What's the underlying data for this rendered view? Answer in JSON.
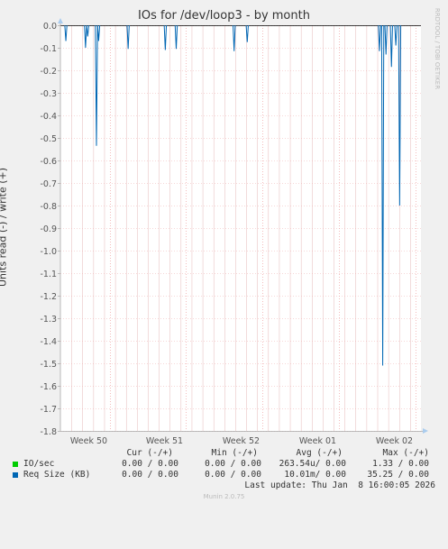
{
  "title": "IOs for /dev/loop3 - by month",
  "side_text": "RRDTOOL / TOBI OETIKER",
  "footer": "Munin 2.0.75",
  "last_update": "Last update: Thu Jan  8 16:00:05 2026",
  "legend": {
    "headers": [
      "Cur (-/+)",
      "Min (-/+)",
      "Avg (-/+)",
      "Max (-/+)"
    ],
    "rows": [
      {
        "name": "IO/sec",
        "color": "#00cc00",
        "values": [
          "0.00 / 0.00",
          "0.00 / 0.00",
          "263.54u/ 0.00",
          "1.33 / 0.00"
        ]
      },
      {
        "name": "Req Size (KB)",
        "color": "#0066b3",
        "values": [
          "0.00 / 0.00",
          "0.00 / 0.00",
          "10.01m/ 0.00",
          "35.25 / 0.00"
        ]
      }
    ]
  },
  "chart_data": {
    "type": "line",
    "title": "IOs for /dev/loop3 - by month",
    "ylabel": "Units read (-) / write (+)",
    "xlabel": "",
    "ylim": [
      -1.8,
      0.0
    ],
    "yticks": [
      0.0,
      -0.1,
      -0.2,
      -0.3,
      -0.4,
      -0.5,
      -0.6,
      -0.7,
      -0.8,
      -0.9,
      -1.0,
      -1.1,
      -1.2,
      -1.3,
      -1.4,
      -1.5,
      -1.6,
      -1.7,
      -1.8
    ],
    "ytick_labels": [
      "0.0",
      "-0.1",
      "-0.2",
      "-0.3",
      "-0.4",
      "-0.5",
      "-0.6",
      "-0.7",
      "-0.8",
      "-0.9",
      "-1.0",
      "-1.1",
      "-1.2",
      "-1.3",
      "-1.4",
      "-1.5",
      "-1.6",
      "-1.7",
      "-1.8"
    ],
    "xlim": [
      0,
      33
    ],
    "xticks": [
      {
        "x": 4.5,
        "label": "Week 50"
      },
      {
        "x": 11.5,
        "label": "Week 51"
      },
      {
        "x": 18.5,
        "label": "Week 52"
      },
      {
        "x": 25.5,
        "label": "Week 01"
      },
      {
        "x": 32.5,
        "label": "Week 02"
      }
    ],
    "x_unit": "days since chart start",
    "grid": true,
    "series": [
      {
        "name": "Req Size (KB)",
        "color": "#0066b3",
        "points": [
          {
            "x": 0.5,
            "y": -0.07
          },
          {
            "x": 2.3,
            "y": -0.1
          },
          {
            "x": 2.5,
            "y": -0.05
          },
          {
            "x": 3.3,
            "y": -0.535
          },
          {
            "x": 3.5,
            "y": -0.07
          },
          {
            "x": 6.2,
            "y": -0.105
          },
          {
            "x": 9.6,
            "y": -0.11
          },
          {
            "x": 10.6,
            "y": -0.105
          },
          {
            "x": 15.9,
            "y": -0.115
          },
          {
            "x": 17.1,
            "y": -0.075
          },
          {
            "x": 29.2,
            "y": -0.115
          },
          {
            "x": 29.5,
            "y": -1.51
          },
          {
            "x": 29.8,
            "y": -0.13
          },
          {
            "x": 30.3,
            "y": -0.185
          },
          {
            "x": 30.7,
            "y": -0.09
          },
          {
            "x": 31.05,
            "y": -0.8
          }
        ]
      }
    ]
  }
}
